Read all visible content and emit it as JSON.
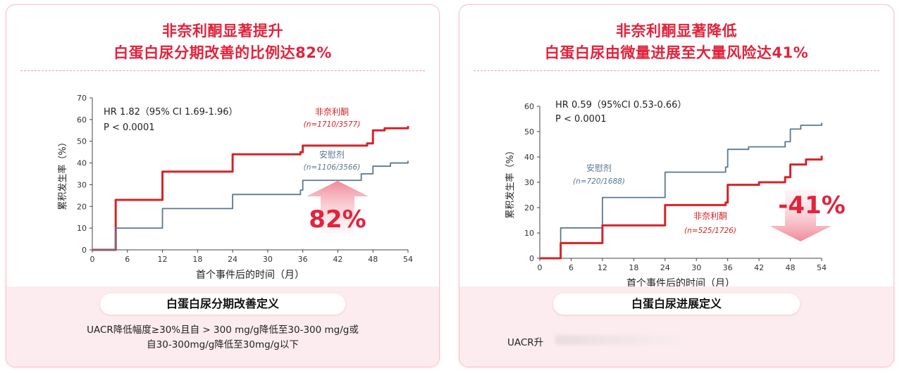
{
  "panels": [
    {
      "title_lines": [
        "非奈利酮显著提升",
        "白蛋白尿分期改善的比例达82%"
      ],
      "definition_title": "白蛋白尿分期改善定义",
      "definition_lines": [
        "UACR降低幅度≥30%且自 > 300 mg/g降低至30-300 mg/g或",
        "自30-300mg/g降低至30mg/g以下"
      ]
    },
    {
      "title_lines": [
        "非奈利酮显著降低",
        "白蛋白尿由微量进展至大量风险达41%"
      ],
      "definition_title": "白蛋白尿进展定义",
      "definition_lines": [
        "UACR升"
      ]
    }
  ],
  "colors": {
    "finerenone": "#d42428",
    "placebo": "#5b7890",
    "accent": "#e2233c"
  },
  "chart_data": [
    {
      "type": "line",
      "step": true,
      "xlabel": "首个事件后的时间（月）",
      "ylabel": "累积发生率（%）",
      "xlim": [
        0,
        54
      ],
      "ylim": [
        0,
        70
      ],
      "xticks": [
        0,
        6,
        12,
        18,
        24,
        30,
        36,
        42,
        48,
        54
      ],
      "yticks": [
        0,
        10,
        20,
        30,
        40,
        50,
        60,
        70
      ],
      "grid": false,
      "annotations": [
        "HR 1.82（95% CI 1.69-1.96）",
        "P < 0.0001"
      ],
      "callout": {
        "text": "82%",
        "direction": "up"
      },
      "series": [
        {
          "name": "非奈利酮",
          "n_label": "n=1710/3577",
          "color": "#d42428",
          "points": [
            [
              0,
              0
            ],
            [
              3.6,
              0
            ],
            [
              4,
              23
            ],
            [
              11.6,
              23
            ],
            [
              12,
              36
            ],
            [
              23.6,
              36
            ],
            [
              24,
              44
            ],
            [
              35.6,
              45
            ],
            [
              36,
              48
            ],
            [
              47,
              49
            ],
            [
              48,
              55
            ],
            [
              50,
              56
            ],
            [
              54,
              57
            ]
          ]
        },
        {
          "name": "安慰剂",
          "n_label": "n=1106/3566",
          "color": "#5b7890",
          "points": [
            [
              0,
              0
            ],
            [
              3.6,
              0
            ],
            [
              4,
              10
            ],
            [
              11.6,
              10
            ],
            [
              12,
              19
            ],
            [
              23.6,
              19
            ],
            [
              24,
              25.5
            ],
            [
              35.6,
              27.5
            ],
            [
              36,
              32
            ],
            [
              46,
              35
            ],
            [
              48,
              38.5
            ],
            [
              51,
              40
            ],
            [
              54,
              41
            ]
          ]
        }
      ]
    },
    {
      "type": "line",
      "step": true,
      "xlabel": "首个事件后的时间（月）",
      "ylabel": "累积发生率（%）",
      "xlim": [
        0,
        54
      ],
      "ylim": [
        0,
        60
      ],
      "xticks": [
        0,
        6,
        12,
        18,
        24,
        30,
        36,
        42,
        48,
        54
      ],
      "yticks": [
        0,
        10,
        20,
        30,
        40,
        50,
        60
      ],
      "grid": false,
      "annotations": [
        "HR 0.59（95%CI 0.53-0.66）",
        "P < 0.0001"
      ],
      "callout": {
        "text": "-41%",
        "direction": "down"
      },
      "series": [
        {
          "name": "安慰剂",
          "n_label": "n=720/1688",
          "color": "#5b7890",
          "points": [
            [
              0,
              0
            ],
            [
              3.6,
              0
            ],
            [
              4,
              12
            ],
            [
              11.6,
              12
            ],
            [
              12,
              24
            ],
            [
              23.6,
              24
            ],
            [
              24,
              34
            ],
            [
              35.6,
              36
            ],
            [
              36,
              43
            ],
            [
              40,
              44
            ],
            [
              47,
              46
            ],
            [
              48,
              51
            ],
            [
              50,
              52.5
            ],
            [
              54,
              53.5
            ]
          ]
        },
        {
          "name": "非奈利酮",
          "n_label": "n=525/1726",
          "color": "#d42428",
          "points": [
            [
              0,
              0
            ],
            [
              3.6,
              0
            ],
            [
              4,
              6
            ],
            [
              11.6,
              6
            ],
            [
              12,
              13
            ],
            [
              23.6,
              13
            ],
            [
              24,
              21
            ],
            [
              35.6,
              22
            ],
            [
              36,
              29
            ],
            [
              42,
              30
            ],
            [
              47,
              32
            ],
            [
              48,
              37
            ],
            [
              51,
              39
            ],
            [
              54,
              40.5
            ]
          ]
        }
      ]
    }
  ]
}
